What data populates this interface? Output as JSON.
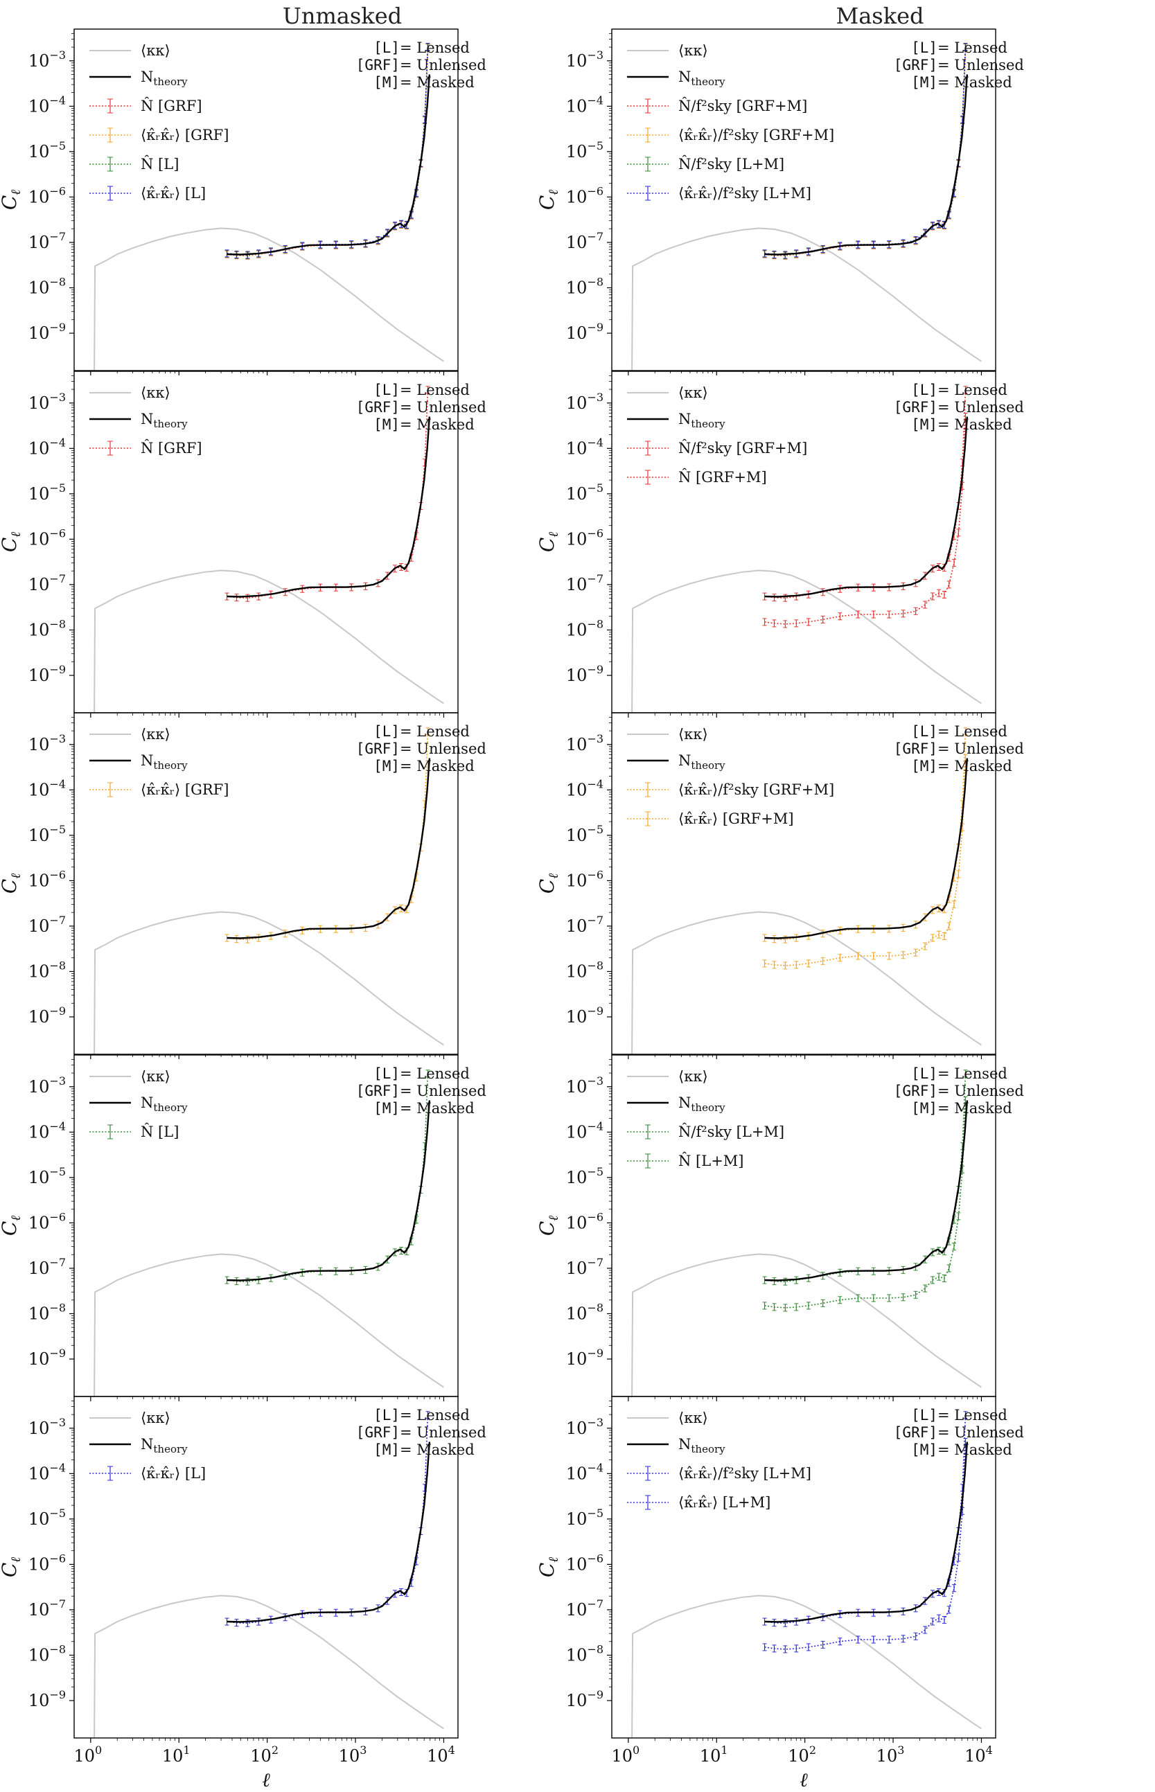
{
  "figure": {
    "column_titles": [
      "Unmasked",
      "Masked"
    ]
  },
  "chart_data": {
    "type": "line",
    "rows": 5,
    "cols": 2,
    "xscale": "log",
    "yscale": "log",
    "xlim": [
      0.65,
      14500
    ],
    "ylim": [
      1.5e-10,
      0.005
    ],
    "xticks": [
      1,
      10,
      100,
      1000,
      10000
    ],
    "xtick_base": "10",
    "xtick_exponents": [
      "0",
      "1",
      "2",
      "3",
      "4"
    ],
    "yticks": [
      1e-09,
      1e-08,
      1e-07,
      1e-06,
      1e-05,
      0.0001,
      0.001
    ],
    "ytick_base": "10",
    "ytick_exponents": [
      "−9",
      "−8",
      "−7",
      "−6",
      "−5",
      "−4",
      "−3"
    ],
    "xlabel": "ℓ",
    "ylabel": "C",
    "ylabel_sub": "ℓ",
    "annotation_lines": [
      {
        "tag": "[L]",
        "text": " = Lensed"
      },
      {
        "tag": "[GRF]",
        "text": " = Unlensed"
      },
      {
        "tag": "[M]",
        "text": " = Masked"
      }
    ],
    "curves": {
      "kappa": [
        [
          1.1,
          1.5e-10
        ],
        [
          1.12,
          3e-08
        ],
        [
          1.5,
          4e-08
        ],
        [
          2,
          5.5e-08
        ],
        [
          3,
          7.5e-08
        ],
        [
          5,
          1.05e-07
        ],
        [
          8,
          1.35e-07
        ],
        [
          12,
          1.6e-07
        ],
        [
          20,
          1.9e-07
        ],
        [
          30,
          2.05e-07
        ],
        [
          45,
          1.95e-07
        ],
        [
          70,
          1.6e-07
        ],
        [
          100,
          1.2e-07
        ],
        [
          200,
          6e-08
        ],
        [
          400,
          2.5e-08
        ],
        [
          700,
          1.1e-08
        ],
        [
          1000,
          6.5e-09
        ],
        [
          2000,
          2.2e-09
        ],
        [
          3000,
          1.2e-09
        ],
        [
          5000,
          6e-10
        ],
        [
          8000,
          3.2e-10
        ],
        [
          10000,
          2.4e-10
        ]
      ],
      "ntheory": [
        [
          35,
          5.5e-08
        ],
        [
          50,
          5.4e-08
        ],
        [
          80,
          5.7e-08
        ],
        [
          120,
          6.3e-08
        ],
        [
          200,
          7.8e-08
        ],
        [
          300,
          8.7e-08
        ],
        [
          500,
          8.8e-08
        ],
        [
          800,
          8.8e-08
        ],
        [
          1200,
          9.2e-08
        ],
        [
          1600,
          1e-07
        ],
        [
          2000,
          1.2e-07
        ],
        [
          2400,
          1.7e-07
        ],
        [
          2800,
          2.3e-07
        ],
        [
          3200,
          2.6e-07
        ],
        [
          3600,
          2.2e-07
        ],
        [
          4000,
          3e-07
        ],
        [
          4500,
          7e-07
        ],
        [
          5000,
          2e-06
        ],
        [
          5500,
          6e-06
        ],
        [
          6000,
          2e-05
        ],
        [
          6500,
          0.0001
        ],
        [
          6900,
          0.0005
        ]
      ],
      "unmasked": [
        [
          35,
          5.6e-08
        ],
        [
          45,
          5.3e-08
        ],
        [
          60,
          5.2e-08
        ],
        [
          80,
          5.6e-08
        ],
        [
          110,
          6.2e-08
        ],
        [
          160,
          7e-08
        ],
        [
          250,
          8.2e-08
        ],
        [
          400,
          8.8e-08
        ],
        [
          600,
          8.8e-08
        ],
        [
          900,
          8.9e-08
        ],
        [
          1300,
          9.4e-08
        ],
        [
          1800,
          1.1e-07
        ],
        [
          2300,
          1.6e-07
        ],
        [
          2800,
          2.3e-07
        ],
        [
          3300,
          2.5e-07
        ],
        [
          3800,
          2.4e-07
        ],
        [
          4300,
          4e-07
        ],
        [
          4900,
          1.2e-06
        ],
        [
          5500,
          5.5e-06
        ],
        [
          6100,
          5e-05
        ],
        [
          6600,
          0.002
        ]
      ],
      "masked_low": [
        [
          35,
          1.5e-08
        ],
        [
          45,
          1.4e-08
        ],
        [
          60,
          1.35e-08
        ],
        [
          80,
          1.4e-08
        ],
        [
          110,
          1.5e-08
        ],
        [
          160,
          1.7e-08
        ],
        [
          250,
          2e-08
        ],
        [
          400,
          2.2e-08
        ],
        [
          600,
          2.2e-08
        ],
        [
          900,
          2.2e-08
        ],
        [
          1300,
          2.3e-08
        ],
        [
          1800,
          2.6e-08
        ],
        [
          2300,
          3.6e-08
        ],
        [
          2800,
          5.5e-08
        ],
        [
          3300,
          6.5e-08
        ],
        [
          3800,
          6e-08
        ],
        [
          4300,
          1e-07
        ],
        [
          4900,
          3e-07
        ],
        [
          5500,
          1.4e-06
        ],
        [
          6100,
          1.5e-05
        ],
        [
          6600,
          0.0005
        ]
      ]
    },
    "legend_meta": {
      "red": "#e8312f",
      "orange": "#f5a623",
      "green": "#2e8b2e",
      "blue": "#2b2bd8",
      "gray": "#c8c8c8",
      "black": "#000000"
    },
    "panels": [
      {
        "row": 0,
        "col": 0,
        "legend": [
          {
            "kind": "gray",
            "label": "⟨κκ⟩"
          },
          {
            "kind": "black",
            "label": "N",
            "sub": "theory"
          },
          {
            "kind": "red",
            "label": "N̂ [GRF]"
          },
          {
            "kind": "orange",
            "label": "⟨κ̂ᵣκ̂ᵣ⟩ [GRF]"
          },
          {
            "kind": "green",
            "label": "N̂ [L]"
          },
          {
            "kind": "blue",
            "label": "⟨κ̂ᵣκ̂ᵣ⟩ [L]"
          }
        ],
        "series": [
          {
            "color": "red",
            "curve": "unmasked"
          },
          {
            "color": "orange",
            "curve": "unmasked"
          },
          {
            "color": "green",
            "curve": "unmasked"
          },
          {
            "color": "blue",
            "curve": "unmasked"
          }
        ]
      },
      {
        "row": 0,
        "col": 1,
        "legend": [
          {
            "kind": "gray",
            "label": "⟨κκ⟩"
          },
          {
            "kind": "black",
            "label": "N",
            "sub": "theory"
          },
          {
            "kind": "red",
            "label": "N̂/f²sky [GRF+M]"
          },
          {
            "kind": "orange",
            "label": "⟨κ̂ᵣκ̂ᵣ⟩/f²sky [GRF+M]"
          },
          {
            "kind": "green",
            "label": "N̂/f²sky [L+M]"
          },
          {
            "kind": "blue",
            "label": "⟨κ̂ᵣκ̂ᵣ⟩/f²sky [L+M]"
          }
        ],
        "series": [
          {
            "color": "red",
            "curve": "unmasked"
          },
          {
            "color": "orange",
            "curve": "unmasked"
          },
          {
            "color": "green",
            "curve": "unmasked"
          },
          {
            "color": "blue",
            "curve": "unmasked"
          }
        ]
      },
      {
        "row": 1,
        "col": 0,
        "legend": [
          {
            "kind": "gray",
            "label": "⟨κκ⟩"
          },
          {
            "kind": "black",
            "label": "N",
            "sub": "theory"
          },
          {
            "kind": "red",
            "label": "N̂ [GRF]"
          }
        ],
        "series": [
          {
            "color": "red",
            "curve": "unmasked"
          }
        ]
      },
      {
        "row": 1,
        "col": 1,
        "legend": [
          {
            "kind": "gray",
            "label": "⟨κκ⟩"
          },
          {
            "kind": "black",
            "label": "N",
            "sub": "theory"
          },
          {
            "kind": "red",
            "label": "N̂/f²sky [GRF+M]"
          },
          {
            "kind": "red",
            "label": "N̂ [GRF+M]"
          }
        ],
        "series": [
          {
            "color": "red",
            "curve": "unmasked"
          },
          {
            "color": "red",
            "curve": "masked_low"
          }
        ]
      },
      {
        "row": 2,
        "col": 0,
        "legend": [
          {
            "kind": "gray",
            "label": "⟨κκ⟩"
          },
          {
            "kind": "black",
            "label": "N",
            "sub": "theory"
          },
          {
            "kind": "orange",
            "label": "⟨κ̂ᵣκ̂ᵣ⟩ [GRF]"
          }
        ],
        "series": [
          {
            "color": "orange",
            "curve": "unmasked"
          }
        ]
      },
      {
        "row": 2,
        "col": 1,
        "legend": [
          {
            "kind": "gray",
            "label": "⟨κκ⟩"
          },
          {
            "kind": "black",
            "label": "N",
            "sub": "theory"
          },
          {
            "kind": "orange",
            "label": "⟨κ̂ᵣκ̂ᵣ⟩/f²sky [GRF+M]"
          },
          {
            "kind": "orange",
            "label": "⟨κ̂ᵣκ̂ᵣ⟩ [GRF+M]"
          }
        ],
        "series": [
          {
            "color": "orange",
            "curve": "unmasked"
          },
          {
            "color": "orange",
            "curve": "masked_low"
          }
        ]
      },
      {
        "row": 3,
        "col": 0,
        "legend": [
          {
            "kind": "gray",
            "label": "⟨κκ⟩"
          },
          {
            "kind": "black",
            "label": "N",
            "sub": "theory"
          },
          {
            "kind": "green",
            "label": "N̂ [L]"
          }
        ],
        "series": [
          {
            "color": "green",
            "curve": "unmasked"
          }
        ]
      },
      {
        "row": 3,
        "col": 1,
        "legend": [
          {
            "kind": "gray",
            "label": "⟨κκ⟩"
          },
          {
            "kind": "black",
            "label": "N",
            "sub": "theory"
          },
          {
            "kind": "green",
            "label": "N̂/f²sky [L+M]"
          },
          {
            "kind": "green",
            "label": "N̂ [L+M]"
          }
        ],
        "series": [
          {
            "color": "green",
            "curve": "unmasked"
          },
          {
            "color": "green",
            "curve": "masked_low"
          }
        ]
      },
      {
        "row": 4,
        "col": 0,
        "legend": [
          {
            "kind": "gray",
            "label": "⟨κκ⟩"
          },
          {
            "kind": "black",
            "label": "N",
            "sub": "theory"
          },
          {
            "kind": "blue",
            "label": "⟨κ̂ᵣκ̂ᵣ⟩ [L]"
          }
        ],
        "series": [
          {
            "color": "blue",
            "curve": "unmasked"
          }
        ]
      },
      {
        "row": 4,
        "col": 1,
        "legend": [
          {
            "kind": "gray",
            "label": "⟨κκ⟩"
          },
          {
            "kind": "black",
            "label": "N",
            "sub": "theory"
          },
          {
            "kind": "blue",
            "label": "⟨κ̂ᵣκ̂ᵣ⟩/f²sky [L+M]"
          },
          {
            "kind": "blue",
            "label": "⟨κ̂ᵣκ̂ᵣ⟩ [L+M]"
          }
        ],
        "series": [
          {
            "color": "blue",
            "curve": "unmasked"
          },
          {
            "color": "blue",
            "curve": "masked_low"
          }
        ]
      }
    ]
  }
}
